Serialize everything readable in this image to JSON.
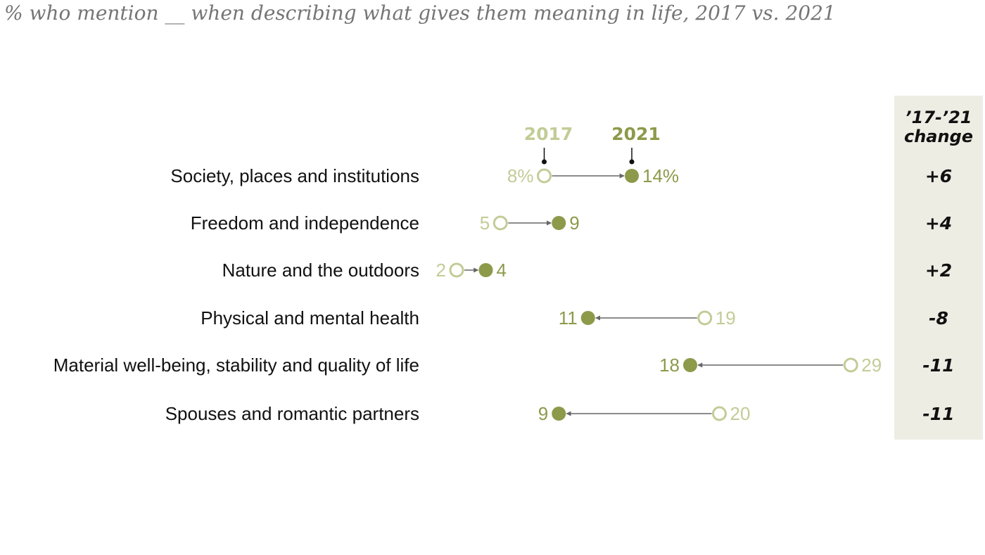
{
  "subtitle": "% who mention __ when describing what gives them meaning in life, 2017 vs. 2021",
  "chart_data": {
    "type": "dot-arrow",
    "series": [
      {
        "name": "2017",
        "color": "#c2cc96",
        "marker": "open-circle"
      },
      {
        "name": "2021",
        "color": "#8c9a4a",
        "marker": "filled-circle"
      }
    ],
    "change_header": [
      "’17-’21",
      "change"
    ],
    "rows": [
      {
        "category": "Society, places and institutions",
        "v2017": 8,
        "v2021": 14,
        "label2017": "8%",
        "label2021": "14%",
        "change": "+6"
      },
      {
        "category": "Freedom and independence",
        "v2017": 5,
        "v2021": 9,
        "label2017": "5",
        "label2021": "9",
        "change": "+4"
      },
      {
        "category": "Nature and the outdoors",
        "v2017": 2,
        "v2021": 4,
        "label2017": "2",
        "label2021": "4",
        "change": "+2"
      },
      {
        "category": "Physical and mental health",
        "v2017": 19,
        "v2021": 11,
        "label2017": "19",
        "label2021": "11",
        "change": "-8"
      },
      {
        "category": "Material well-being, stability and quality of life",
        "v2017": 29,
        "v2021": 18,
        "label2017": "29",
        "label2021": "18",
        "change": "-11"
      },
      {
        "category": "Spouses and romantic partners",
        "v2017": 20,
        "v2021": 9,
        "label2017": "20",
        "label2021": "9",
        "change": "-11"
      }
    ],
    "arrow_color": "#666666",
    "change_panel_color": "#eeede4"
  }
}
